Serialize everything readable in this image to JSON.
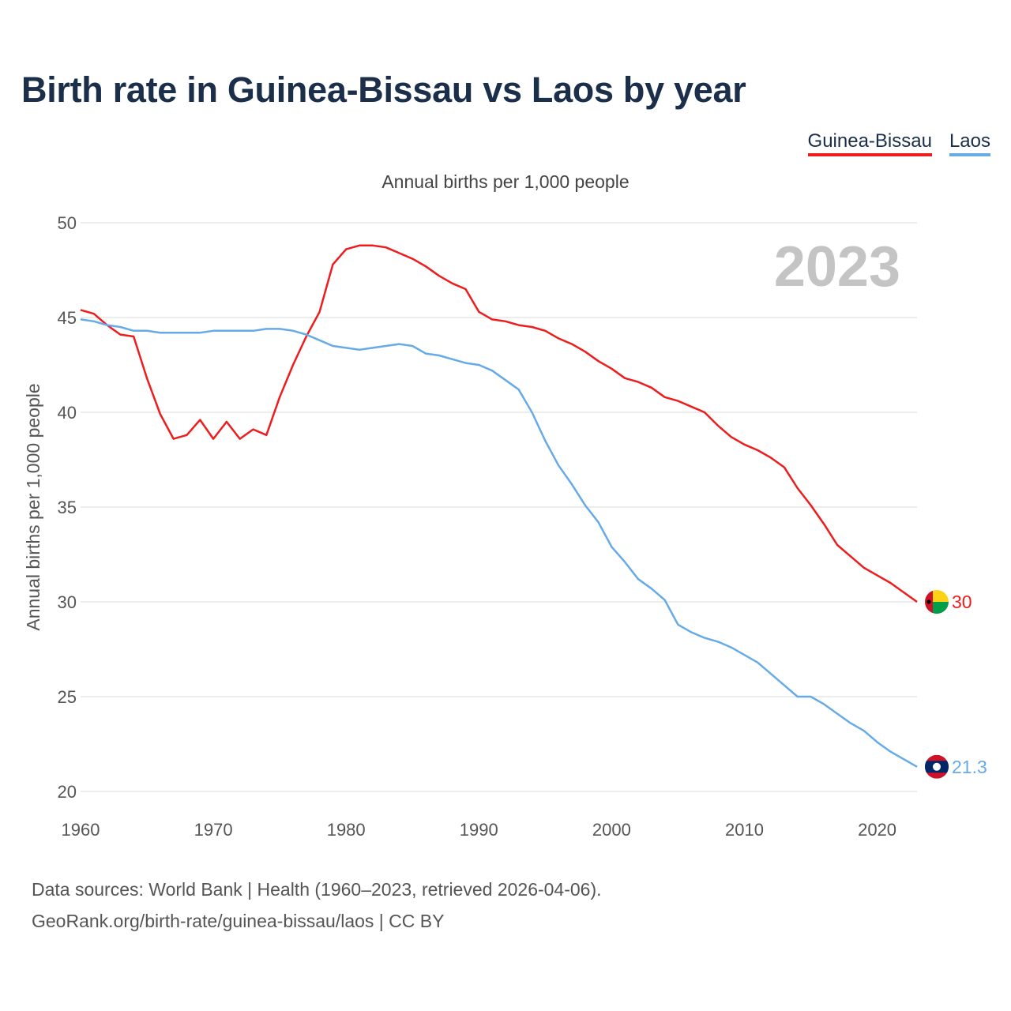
{
  "title": "Birth rate in Guinea-Bissau vs Laos by year",
  "legend": {
    "guinea_bissau": "Guinea-Bissau",
    "laos": "Laos"
  },
  "subtitle": "Annual births per 1,000 people",
  "footer": {
    "line1": "Data sources: World Bank | Health (1960–2023, retrieved 2026-04-06).",
    "line2": "GeoRank.org/birth-rate/guinea-bissau/laos | CC BY"
  },
  "chart_data": {
    "type": "line",
    "title": "Birth rate in Guinea-Bissau vs Laos by year",
    "xlabel": "",
    "ylabel": "Annual births per 1,000 people",
    "xlim": [
      1960,
      2023
    ],
    "ylim": [
      20,
      50
    ],
    "x_ticks": [
      1960,
      1970,
      1980,
      1990,
      2000,
      2010,
      2020
    ],
    "y_ticks": [
      20,
      25,
      30,
      35,
      40,
      45,
      50
    ],
    "grid": true,
    "year_label": "2023",
    "x": [
      1960,
      1961,
      1962,
      1963,
      1964,
      1965,
      1966,
      1967,
      1968,
      1969,
      1970,
      1971,
      1972,
      1973,
      1974,
      1975,
      1976,
      1977,
      1978,
      1979,
      1980,
      1981,
      1982,
      1983,
      1984,
      1985,
      1986,
      1987,
      1988,
      1989,
      1990,
      1991,
      1992,
      1993,
      1994,
      1995,
      1996,
      1997,
      1998,
      1999,
      2000,
      2001,
      2002,
      2003,
      2004,
      2005,
      2006,
      2007,
      2008,
      2009,
      2010,
      2011,
      2012,
      2013,
      2014,
      2015,
      2016,
      2017,
      2018,
      2019,
      2020,
      2021,
      2022,
      2023
    ],
    "series": [
      {
        "name": "Guinea-Bissau",
        "color": "#ee1c1c",
        "end_label": "30",
        "flag": "guinea-bissau-flag",
        "values": [
          45.4,
          45.2,
          44.6,
          44.1,
          44.0,
          41.8,
          39.9,
          38.6,
          38.8,
          39.6,
          38.6,
          39.5,
          38.6,
          39.1,
          38.8,
          40.8,
          42.5,
          44.0,
          45.3,
          47.8,
          48.6,
          48.8,
          48.8,
          48.7,
          48.4,
          48.1,
          47.7,
          47.2,
          46.8,
          46.5,
          45.3,
          44.9,
          44.8,
          44.6,
          44.5,
          44.3,
          43.9,
          43.6,
          43.2,
          42.7,
          42.3,
          41.8,
          41.6,
          41.3,
          40.8,
          40.6,
          40.3,
          40.0,
          39.3,
          38.7,
          38.3,
          38.0,
          37.6,
          37.1,
          36.0,
          35.1,
          34.1,
          33.0,
          32.4,
          31.8,
          31.4,
          31.0,
          30.5,
          30.0
        ]
      },
      {
        "name": "Laos",
        "color": "#66aae8",
        "end_label": "21.3",
        "flag": "laos-flag",
        "values": [
          44.9,
          44.8,
          44.6,
          44.5,
          44.3,
          44.3,
          44.2,
          44.2,
          44.2,
          44.2,
          44.3,
          44.3,
          44.3,
          44.3,
          44.4,
          44.4,
          44.3,
          44.1,
          43.8,
          43.5,
          43.4,
          43.3,
          43.4,
          43.5,
          43.6,
          43.5,
          43.1,
          43.0,
          42.8,
          42.6,
          42.5,
          42.2,
          41.7,
          41.2,
          40.0,
          38.5,
          37.2,
          36.2,
          35.1,
          34.2,
          32.9,
          32.1,
          31.2,
          30.7,
          30.1,
          28.8,
          28.4,
          28.1,
          27.9,
          27.6,
          27.2,
          26.8,
          26.2,
          25.6,
          25.0,
          25.0,
          24.6,
          24.1,
          23.6,
          23.2,
          22.6,
          22.1,
          21.7,
          21.3
        ]
      }
    ]
  }
}
